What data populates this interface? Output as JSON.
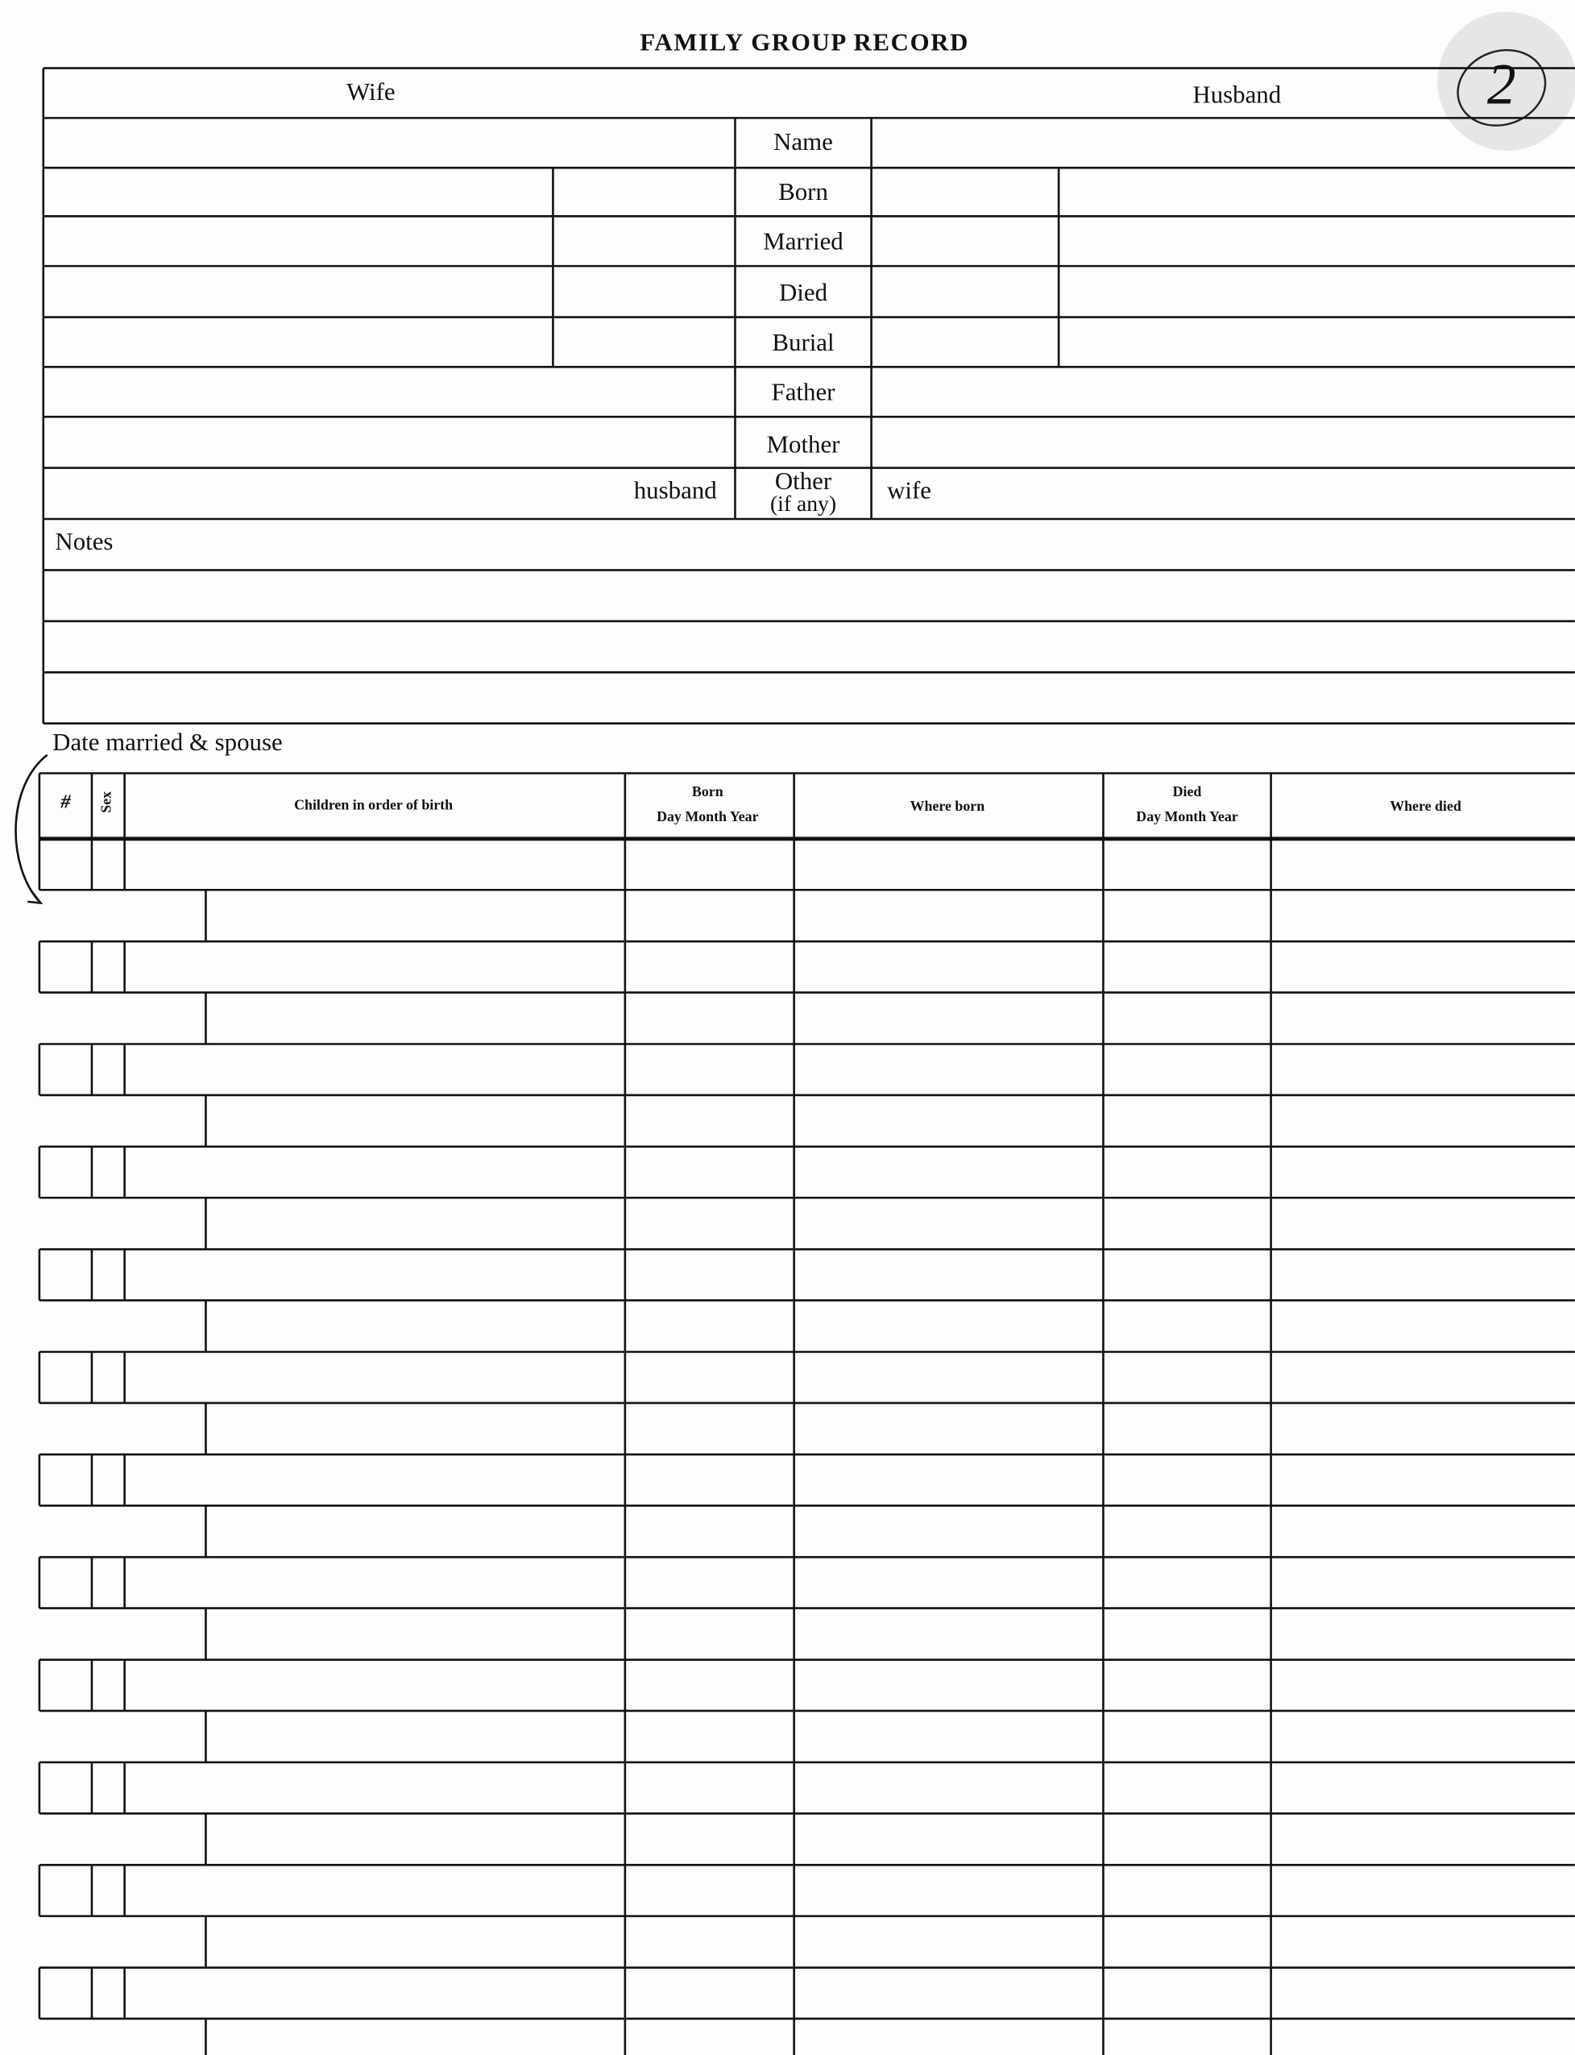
{
  "header": {
    "title": "FAMILY GROUP RECORD",
    "page_mark": "2"
  },
  "couple": {
    "wife_label": "Wife",
    "husband_label": "Husband",
    "fields": [
      "Name",
      "Born",
      "Married",
      "Died",
      "Burial",
      "Father",
      "Mother"
    ],
    "other": {
      "label": "Other",
      "sub": "(if any)",
      "husband": "husband",
      "wife": "wife"
    }
  },
  "notes": {
    "label": "Notes"
  },
  "children": {
    "note": "Date married & spouse",
    "columns": [
      "#",
      "Sex",
      "Children in order of birth",
      {
        "title": "Born",
        "sub": "Day Month Year"
      },
      "Where born",
      {
        "title": "Died",
        "sub": "Day Month Year"
      },
      "Where died"
    ]
  }
}
